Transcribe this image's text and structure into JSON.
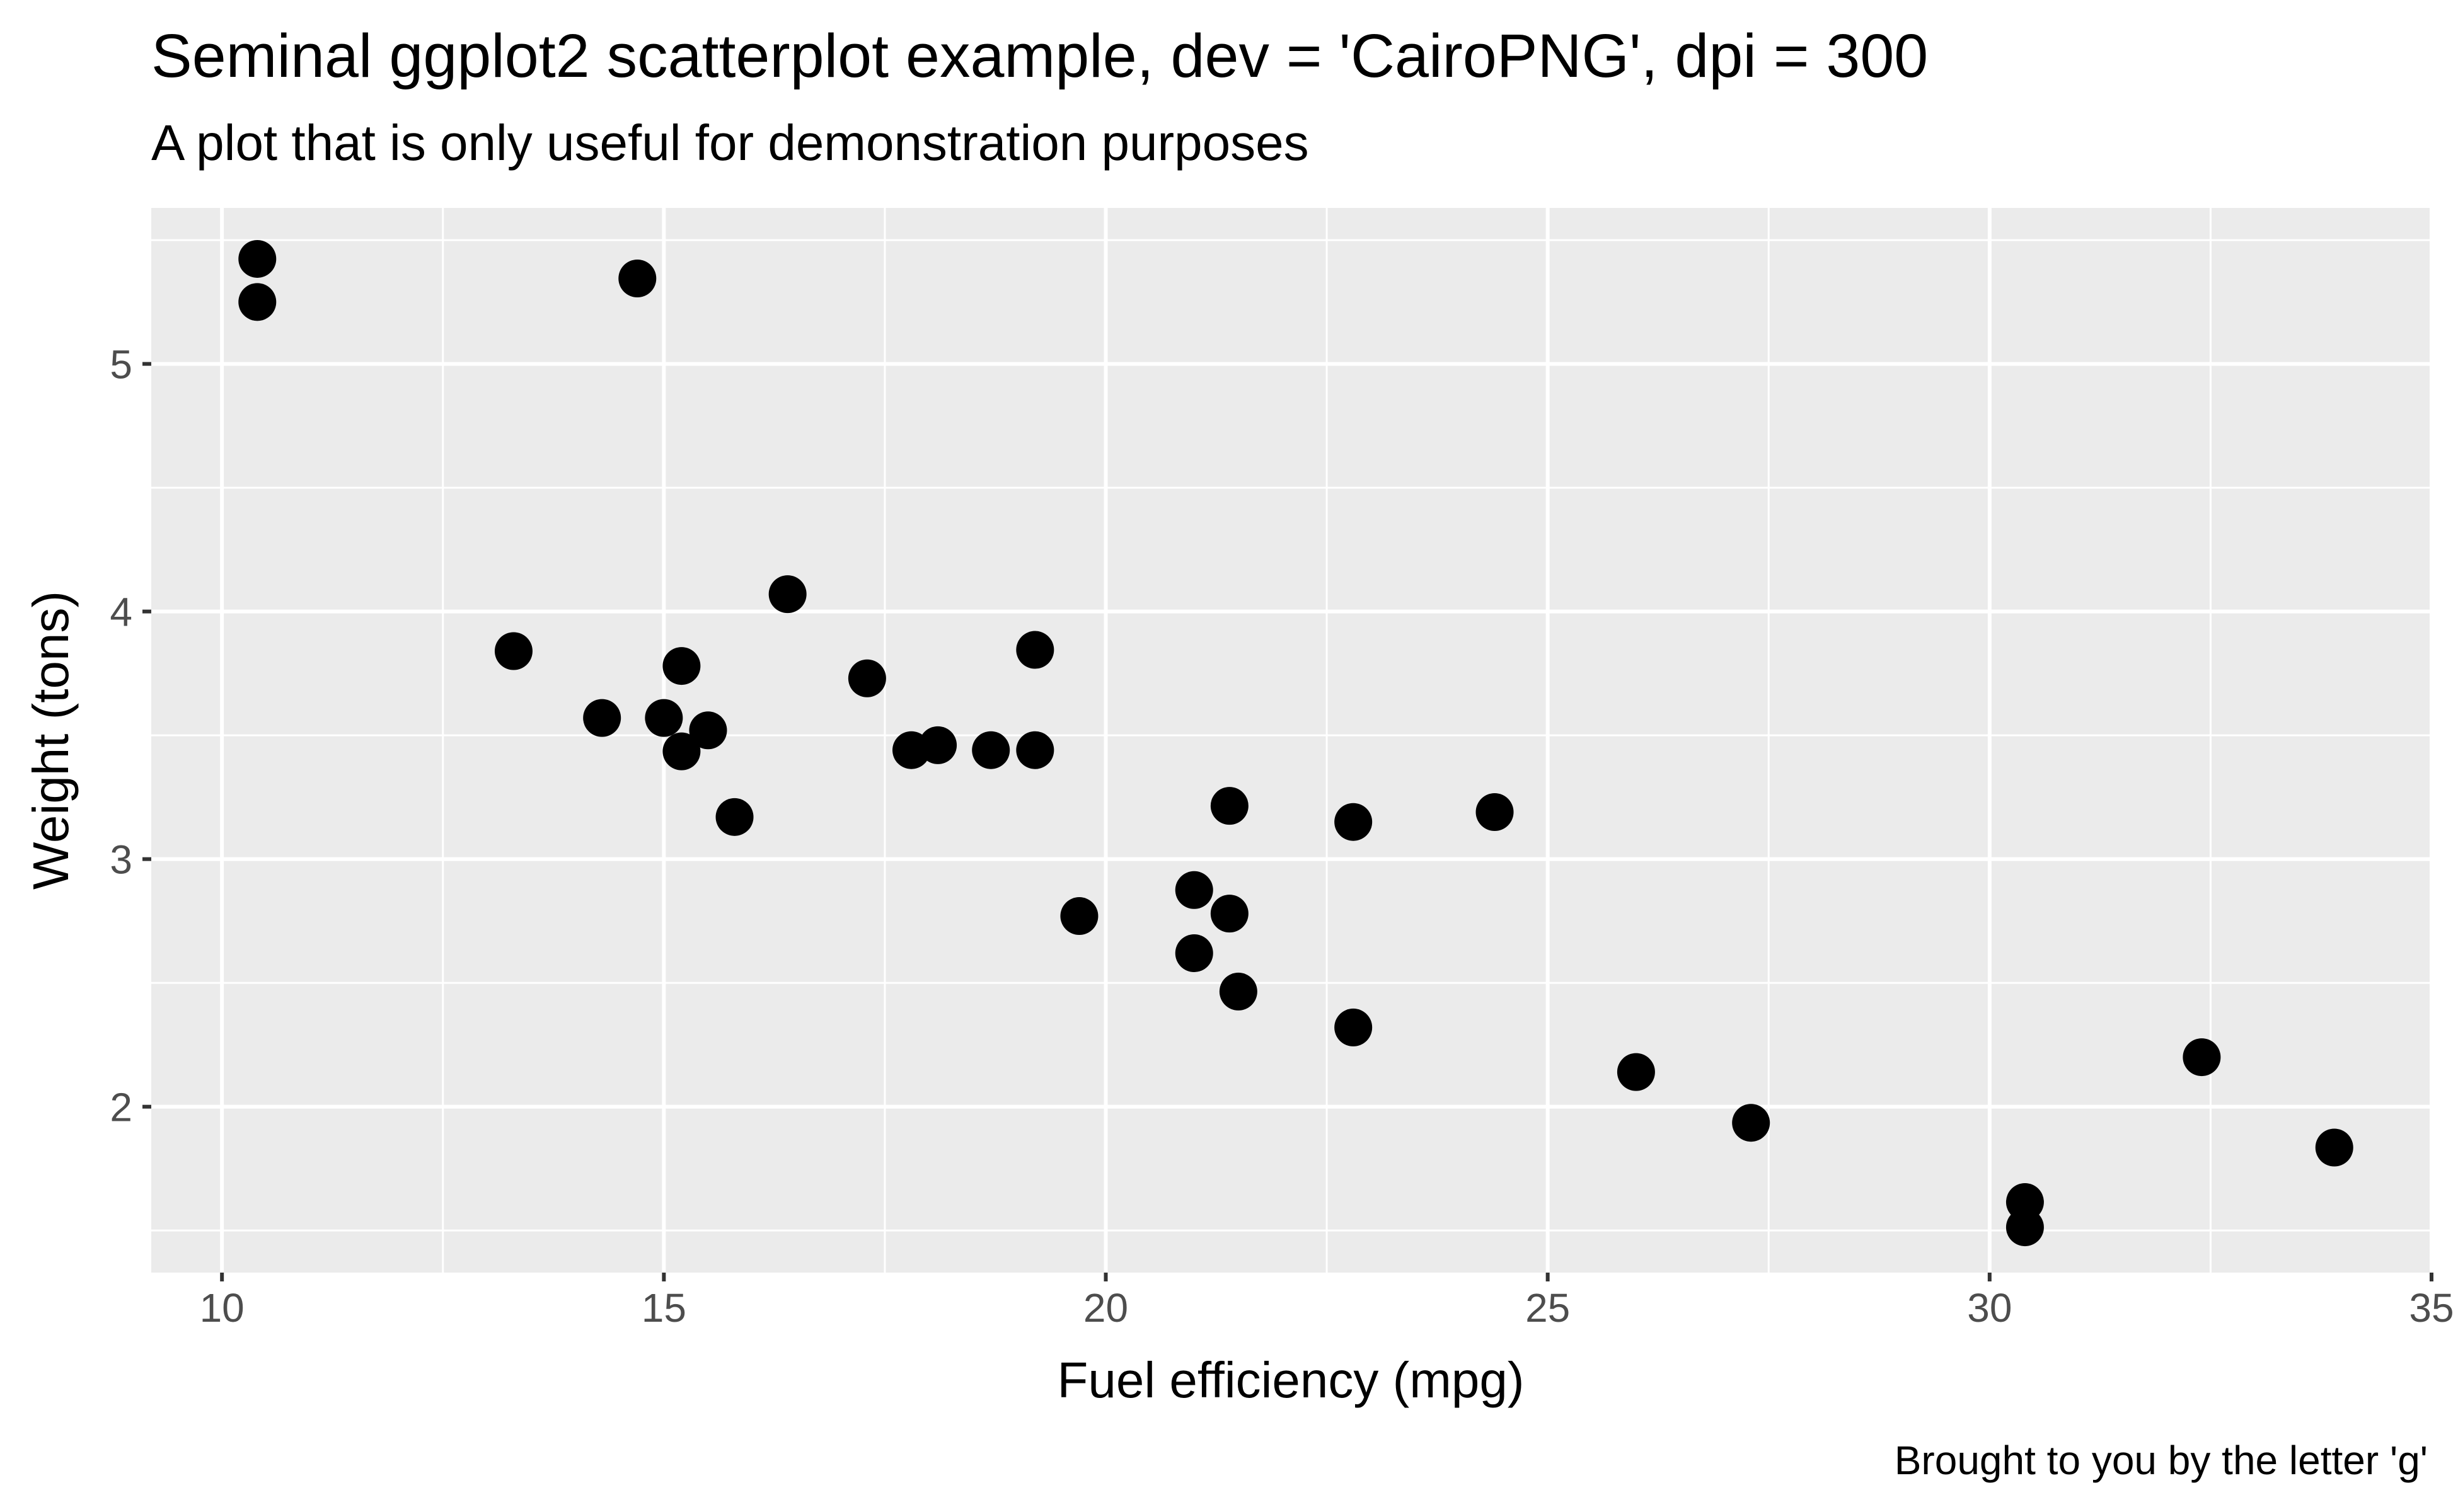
{
  "chart_data": {
    "type": "scatter",
    "title": "Seminal ggplot2 scatterplot example, dev = 'CairoPNG', dpi = 300",
    "subtitle": "A plot that is only useful for demonstration purposes",
    "xlabel": "Fuel efficiency (mpg)",
    "ylabel": "Weight (tons)",
    "caption": "Brought to you by the letter 'g'",
    "xlim": [
      9.2,
      35.0
    ],
    "ylim": [
      1.33,
      5.63
    ],
    "x_ticks": [
      10,
      15,
      20,
      25,
      30,
      35
    ],
    "y_ticks": [
      2,
      3,
      4,
      5
    ],
    "x_tick_labels": [
      "10",
      "15",
      "20",
      "25",
      "30",
      "35"
    ],
    "y_tick_labels": [
      "2",
      "3",
      "4",
      "5"
    ],
    "grid": true,
    "legend": "none",
    "point_color": "#000000",
    "panel_color": "#ebebeb",
    "grid_color": "#ffffff",
    "points": [
      {
        "x": 10.4,
        "y": 5.424
      },
      {
        "x": 10.4,
        "y": 5.25
      },
      {
        "x": 14.7,
        "y": 5.345
      },
      {
        "x": 13.3,
        "y": 3.84
      },
      {
        "x": 14.3,
        "y": 3.57
      },
      {
        "x": 15.0,
        "y": 3.57
      },
      {
        "x": 15.2,
        "y": 3.78
      },
      {
        "x": 15.2,
        "y": 3.435
      },
      {
        "x": 15.5,
        "y": 3.52
      },
      {
        "x": 15.8,
        "y": 3.17
      },
      {
        "x": 16.4,
        "y": 4.07
      },
      {
        "x": 17.3,
        "y": 3.73
      },
      {
        "x": 17.8,
        "y": 3.44
      },
      {
        "x": 18.1,
        "y": 3.46
      },
      {
        "x": 18.7,
        "y": 3.44
      },
      {
        "x": 19.2,
        "y": 3.44
      },
      {
        "x": 19.2,
        "y": 3.845
      },
      {
        "x": 19.7,
        "y": 2.77
      },
      {
        "x": 21.0,
        "y": 2.62
      },
      {
        "x": 21.0,
        "y": 2.875
      },
      {
        "x": 21.4,
        "y": 3.215
      },
      {
        "x": 21.4,
        "y": 2.78
      },
      {
        "x": 21.5,
        "y": 2.465
      },
      {
        "x": 22.8,
        "y": 3.15
      },
      {
        "x": 22.8,
        "y": 2.32
      },
      {
        "x": 24.4,
        "y": 3.19
      },
      {
        "x": 26.0,
        "y": 2.14
      },
      {
        "x": 27.3,
        "y": 1.935
      },
      {
        "x": 30.4,
        "y": 1.615
      },
      {
        "x": 30.4,
        "y": 1.513
      },
      {
        "x": 32.4,
        "y": 2.2
      },
      {
        "x": 33.9,
        "y": 1.835
      }
    ]
  }
}
